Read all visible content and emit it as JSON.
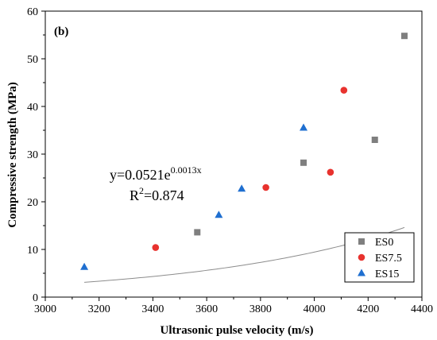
{
  "chart_data": {
    "type": "scatter",
    "panel_label": "(b)",
    "xlabel": "Ultrasonic pulse velocity (m/s)",
    "ylabel": "Compressive strength (MPa)",
    "xlim": [
      3000,
      4400
    ],
    "ylim": [
      0,
      60
    ],
    "xticks": [
      3000,
      3200,
      3400,
      3600,
      3800,
      4000,
      4200,
      4400
    ],
    "yticks": [
      0,
      10,
      20,
      30,
      40,
      50,
      60
    ],
    "grid": false,
    "legend_position": "bottom-right",
    "series": [
      {
        "name": "ES0",
        "marker": "square",
        "color": "#7f7f7f",
        "points": [
          [
            3565,
            13.6
          ],
          [
            3960,
            28.2
          ],
          [
            4225,
            33.0
          ],
          [
            4335,
            54.8
          ]
        ]
      },
      {
        "name": "ES7.5",
        "marker": "circle",
        "color": "#e8322e",
        "points": [
          [
            3410,
            10.4
          ],
          [
            3820,
            23.0
          ],
          [
            4060,
            26.2
          ],
          [
            4110,
            43.4
          ]
        ]
      },
      {
        "name": "ES15",
        "marker": "triangle",
        "color": "#1f6fd0",
        "points": [
          [
            3145,
            6.3
          ],
          [
            3645,
            17.2
          ],
          [
            3730,
            22.7
          ],
          [
            3960,
            35.5
          ]
        ]
      }
    ],
    "fit": {
      "a": 0.0521,
      "b": 0.0013,
      "x_range": [
        3145,
        4335
      ],
      "equation_main": "y=0.0521e",
      "equation_exp": "0.0013x",
      "r2_prefix": "R",
      "r2_sup": "2",
      "r2_value": "=0.874"
    }
  }
}
